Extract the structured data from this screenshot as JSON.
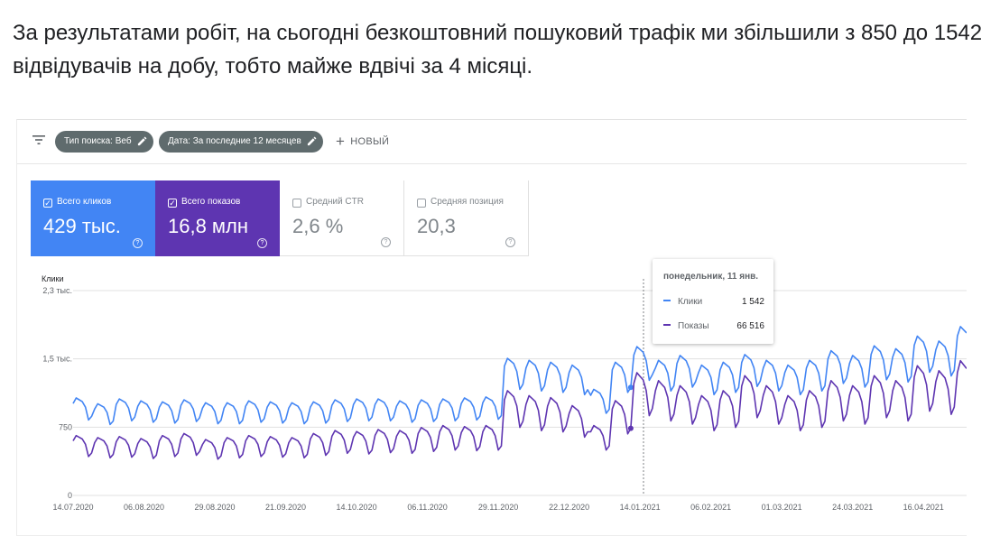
{
  "intro_text": "За результатами робіт, на сьогодні безкоштовний пошуковий трафік ми збільшили з 850 до 1542 відвідувачів на добу, тобто майже вдвічі за 4 місяці.",
  "filter_bar": {
    "filter_icon": "filter-lines-icon",
    "chips": [
      {
        "label": "Тип поиска: Веб",
        "icon": "pencil-icon"
      },
      {
        "label": "Дата: За последние 12 месяцев",
        "icon": "pencil-icon"
      }
    ],
    "new_label": "НОВЫЙ"
  },
  "metrics": [
    {
      "label": "Всего кликов",
      "value": "429 тыс.",
      "checked": true,
      "color": "#4285f4"
    },
    {
      "label": "Всего показов",
      "value": "16,8 млн",
      "checked": true,
      "color": "#5e35b1"
    },
    {
      "label": "Средний CTR",
      "value": "2,6 %",
      "checked": false
    },
    {
      "label": "Средняя позиция",
      "value": "20,3",
      "checked": false
    }
  ],
  "tooltip": {
    "title": "понедельник, 11 янв.",
    "rows": [
      {
        "label": "Клики",
        "value": "1 542",
        "color": "#4285f4"
      },
      {
        "label": "Показы",
        "value": "66 516",
        "color": "#5e35b1"
      }
    ]
  },
  "chart_data": {
    "type": "line",
    "ylabel": "Клики",
    "y_ticks": [
      "2,3 тыс.",
      "1,5 тыс.",
      "750",
      "0"
    ],
    "y_tick_values": [
      2250,
      1500,
      750,
      0
    ],
    "ylim": [
      0,
      2250
    ],
    "x_ticks": [
      "14.07.2020",
      "06.08.2020",
      "29.08.2020",
      "21.09.2020",
      "14.10.2020",
      "06.11.2020",
      "29.11.2020",
      "22.12.2020",
      "14.01.2021",
      "06.02.2021",
      "01.03.2021",
      "24.03.2021",
      "16.04.2021"
    ],
    "x_start": "2020-07-14",
    "x_end": "2021-04-30",
    "grid": true,
    "legend_position": "none",
    "hover_date": "2021-01-11",
    "series": [
      {
        "name": "Клики",
        "color": "#4285f4",
        "weekly_values": [
          1010,
          950,
          1000,
          980,
          970,
          990,
          960,
          960,
          980,
          970,
          960,
          970,
          990,
          1000,
          1000,
          980,
          990,
          1000,
          1010,
          1020,
          1420,
          1400,
          1380,
          1350,
          1100,
          1380,
          1542,
          1400,
          1450,
          1350,
          1380,
          1460,
          1400,
          1350,
          1400,
          1500,
          1450,
          1550,
          1520,
          1650,
          1600,
          1750,
          1800,
          1550
        ]
      },
      {
        "name": "Показы",
        "color": "#5e35b1",
        "weekly_values": [
          600,
          580,
          590,
          570,
          600,
          620,
          560,
          580,
          600,
          590,
          580,
          620,
          650,
          640,
          660,
          650,
          680,
          700,
          690,
          700,
          1050,
          1000,
          980,
          900,
          700,
          950,
          1230,
          1150,
          1100,
          1000,
          1050,
          1200,
          1100,
          1000,
          1050,
          1150,
          1100,
          1200,
          1150,
          1300,
          1250,
          1350,
          1400,
          1150
        ]
      }
    ]
  }
}
